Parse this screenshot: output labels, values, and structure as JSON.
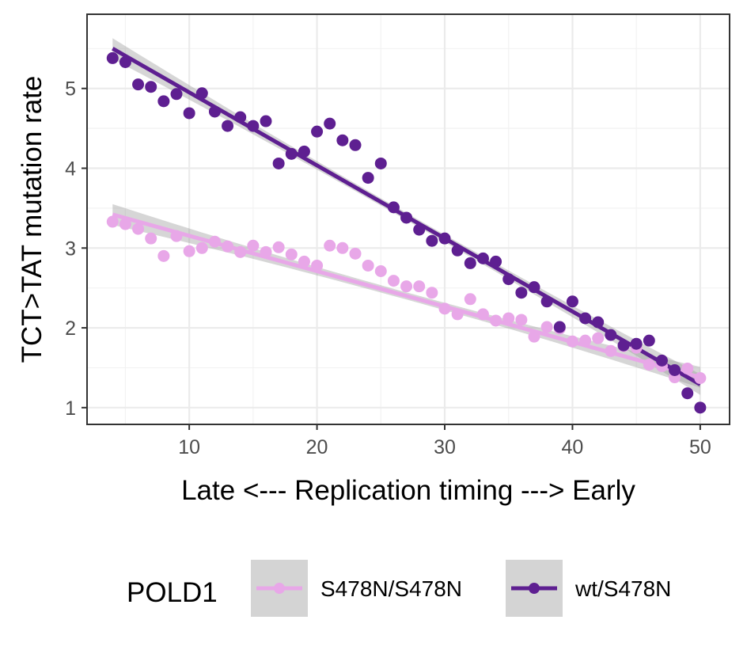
{
  "chart_data": {
    "type": "scatter",
    "xlabel": "Late <--- Replication timing ---> Early",
    "ylabel": "TCT>TAT mutation rate",
    "xlim": [
      2,
      52.3
    ],
    "ylim": [
      0.79,
      5.93
    ],
    "xticks": [
      "10",
      "20",
      "30",
      "40",
      "50"
    ],
    "yticks": [
      "1",
      "2",
      "3",
      "4",
      "5"
    ],
    "grid": true,
    "legend": {
      "title": "POLD1",
      "position": "bottom"
    },
    "series": [
      {
        "name": "S478N/S478N",
        "color": "#E8A7E8",
        "fit": {
          "x": [
            4,
            50
          ],
          "y": [
            3.42,
            1.38
          ]
        },
        "x": [
          4,
          5,
          6,
          7,
          8,
          9,
          10,
          11,
          12,
          13,
          14,
          15,
          16,
          17,
          18,
          19,
          20,
          21,
          22,
          23,
          24,
          25,
          26,
          27,
          28,
          29,
          30,
          31,
          32,
          33,
          34,
          35,
          36,
          37,
          38,
          39,
          40,
          41,
          42,
          43,
          44,
          45,
          46,
          47,
          48,
          49,
          50
        ],
        "y": [
          3.33,
          3.3,
          3.24,
          3.12,
          2.9,
          3.15,
          2.96,
          3.0,
          3.08,
          3.02,
          2.95,
          3.03,
          2.95,
          3.01,
          2.92,
          2.83,
          2.78,
          3.03,
          3.0,
          2.93,
          2.78,
          2.71,
          2.59,
          2.52,
          2.52,
          2.44,
          2.24,
          2.17,
          2.36,
          2.17,
          2.09,
          2.12,
          2.1,
          1.89,
          2.01,
          1.99,
          1.83,
          1.84,
          1.87,
          1.71,
          1.77,
          1.75,
          1.54,
          1.52,
          1.38,
          1.49,
          1.37
        ]
      },
      {
        "name": "wt/S478N",
        "color": "#5E1F91",
        "fit": {
          "x": [
            4,
            50
          ],
          "y": [
            5.5,
            1.29
          ]
        },
        "x": [
          4,
          5,
          6,
          7,
          8,
          9,
          10,
          11,
          12,
          13,
          14,
          15,
          16,
          17,
          18,
          19,
          20,
          21,
          22,
          23,
          24,
          25,
          26,
          27,
          28,
          29,
          30,
          31,
          32,
          33,
          34,
          35,
          36,
          37,
          38,
          39,
          40,
          41,
          42,
          43,
          44,
          45,
          46,
          47,
          48,
          49,
          50
        ],
        "y": [
          5.38,
          5.33,
          5.05,
          5.02,
          4.84,
          4.93,
          4.69,
          4.94,
          4.71,
          4.53,
          4.64,
          4.53,
          4.59,
          4.06,
          4.18,
          4.21,
          4.46,
          4.56,
          4.35,
          4.29,
          3.88,
          4.06,
          3.51,
          3.38,
          3.23,
          3.09,
          3.12,
          2.97,
          2.81,
          2.87,
          2.83,
          2.61,
          2.44,
          2.51,
          2.33,
          2.01,
          2.33,
          2.12,
          2.07,
          1.91,
          1.78,
          1.8,
          1.84,
          1.59,
          1.47,
          1.18,
          1.0
        ]
      }
    ]
  }
}
